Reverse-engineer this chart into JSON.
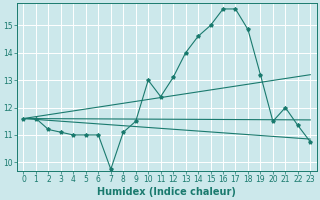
{
  "background_color": "#cce8eb",
  "line_color": "#1a7a6e",
  "grid_color": "#ffffff",
  "xlabel": "Humidex (Indice chaleur)",
  "x_ticks": [
    0,
    1,
    2,
    3,
    4,
    5,
    6,
    7,
    8,
    9,
    10,
    11,
    12,
    13,
    14,
    15,
    16,
    17,
    18,
    19,
    20,
    21,
    22,
    23
  ],
  "ylim": [
    9.7,
    15.8
  ],
  "y_ticks": [
    10,
    11,
    12,
    13,
    14,
    15
  ],
  "series": [
    {
      "x": [
        0,
        1,
        2,
        3,
        4,
        5,
        6,
        7,
        8,
        9,
        10,
        11,
        12,
        13,
        14,
        15,
        16,
        17,
        18,
        19,
        20,
        21,
        22,
        23
      ],
      "y": [
        11.6,
        11.6,
        11.2,
        11.1,
        11.0,
        11.0,
        11.0,
        9.75,
        11.1,
        11.5,
        13.0,
        12.4,
        13.1,
        14.0,
        14.6,
        15.0,
        15.6,
        15.6,
        14.85,
        13.2,
        11.5,
        12.0,
        11.35,
        10.75
      ]
    },
    {
      "x": [
        0,
        23
      ],
      "y": [
        11.6,
        13.2
      ]
    },
    {
      "x": [
        0,
        23
      ],
      "y": [
        11.6,
        11.55
      ]
    },
    {
      "x": [
        0,
        23
      ],
      "y": [
        11.6,
        10.85
      ]
    }
  ],
  "axis_fontsize": 6.5,
  "tick_fontsize": 5.5,
  "xlabel_fontsize": 7.0
}
